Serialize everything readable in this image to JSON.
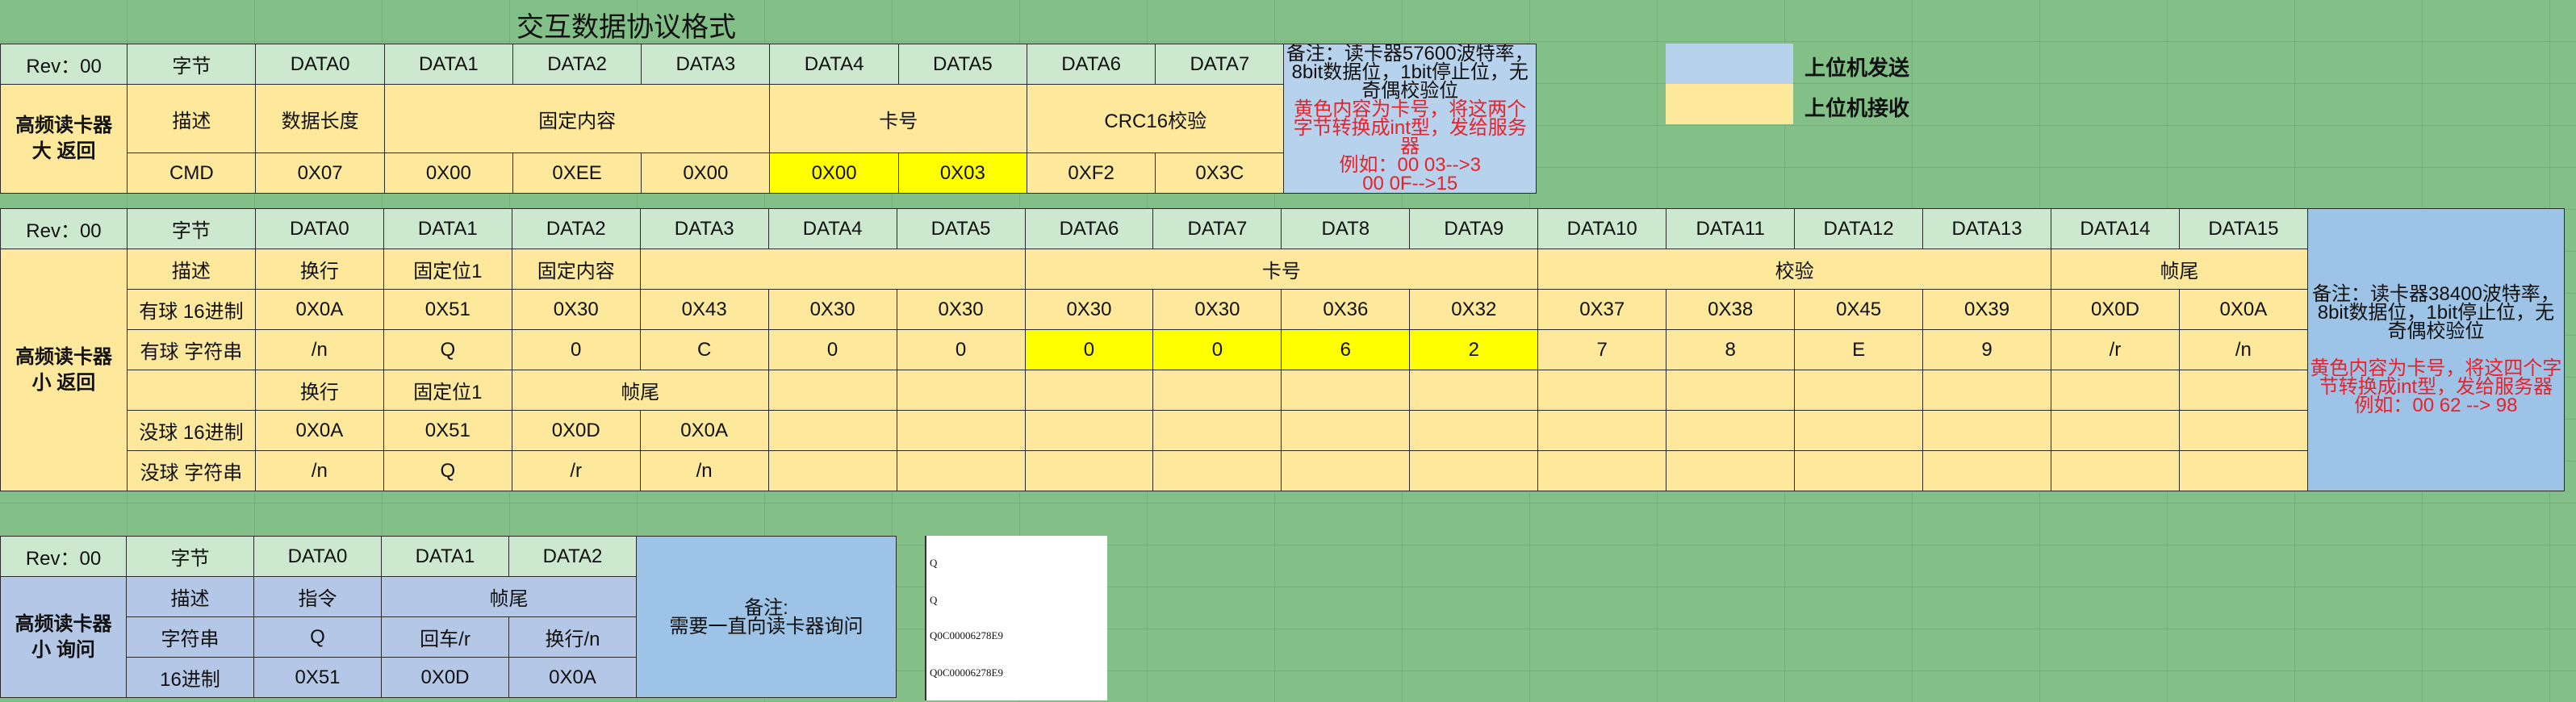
{
  "title": "交互数据协议格式",
  "legend": {
    "send": "上位机发送",
    "receive": "上位机接收",
    "send_color": "#b7d2ec",
    "receive_color": "#fde89c"
  },
  "t1": {
    "rev": "Rev：00",
    "name1": "高频读卡器",
    "name2": "大 返回",
    "header": [
      "字节",
      "DATA0",
      "DATA1",
      "DATA2",
      "DATA3",
      "DATA4",
      "DATA5",
      "DATA6",
      "DATA7"
    ],
    "desc_label": "描述",
    "desc": {
      "len": "数据长度",
      "fixed": "固定内容",
      "card": "卡号",
      "crc": "CRC16校验"
    },
    "row": [
      "CMD",
      "0X07",
      "0X00",
      "0XEE",
      "0X00",
      "0X00",
      "0X03",
      "0XF2",
      "0X3C"
    ],
    "note": [
      "备注：读卡器57600波特率，8bit数据位，1bit停止位，无奇偶校验位",
      "黄色内容为卡号，将这两个字节转换成int型，发给服务器",
      "例如：00 03-->3",
      "00 0F-->15"
    ]
  },
  "t2": {
    "rev": "Rev：00",
    "name1": "高频读卡器",
    "name2": "小 返回",
    "header": [
      "字节",
      "DATA0",
      "DATA1",
      "DATA2",
      "DATA3",
      "DATA4",
      "DATA5",
      "DATA6",
      "DATA7",
      "DAT8",
      "DATA9",
      "DATA10",
      "DATA11",
      "DATA12",
      "DATA13",
      "DATA14",
      "DATA15"
    ],
    "desc_label": "描述",
    "desc": {
      "d0": "换行",
      "d1": "固定位1",
      "d2": "固定内容",
      "card": "卡号",
      "check": "校验",
      "tail": "帧尾"
    },
    "hex_label": "有球 16进制",
    "hex": [
      "0X0A",
      "0X51",
      "0X30",
      "0X43",
      "0X30",
      "0X30",
      "0X30",
      "0X30",
      "0X36",
      "0X32",
      "0X37",
      "0X38",
      "0X45",
      "0X39",
      "0X0D",
      "0X0A"
    ],
    "str_label": "有球 字符串",
    "str": [
      "/n",
      "Q",
      "0",
      "C",
      "0",
      "0",
      "0",
      "0",
      "6",
      "2",
      "7",
      "8",
      "E",
      "9",
      "/r",
      "/n"
    ],
    "nb_desc": [
      "换行",
      "固定位1",
      "帧尾"
    ],
    "nb_hex_label": "没球 16进制",
    "nb_hex": [
      "0X0A",
      "0X51",
      "0X0D",
      "0X0A"
    ],
    "nb_str_label": "没球 字符串",
    "nb_str": [
      "/n",
      "Q",
      "/r",
      "/n"
    ],
    "note": [
      "备注：读卡器38400波特率，8bit数据位，1bit停止位，无奇偶校验位",
      "黄色内容为卡号，将这四个字节转换成int型，发给服务器",
      "例如：00 62 --> 98"
    ]
  },
  "t3": {
    "rev": "Rev：00",
    "name1": "高频读卡器",
    "name2": "小 询问",
    "header": [
      "字节",
      "DATA0",
      "DATA1",
      "DATA2"
    ],
    "desc_label": "描述",
    "desc": {
      "cmd": "指令",
      "tail": "帧尾"
    },
    "str_label": "字符串",
    "str": [
      "Q",
      "回车/r",
      "换行/n"
    ],
    "hex_label": "16进制",
    "hex": [
      "0X51",
      "0X0D",
      "0X0A"
    ],
    "note": [
      "备注:",
      "需要一直向读卡器询问"
    ]
  },
  "terminal": [
    "Q",
    "Q",
    "Q0C00006278E9",
    "Q0C00006278E9"
  ]
}
